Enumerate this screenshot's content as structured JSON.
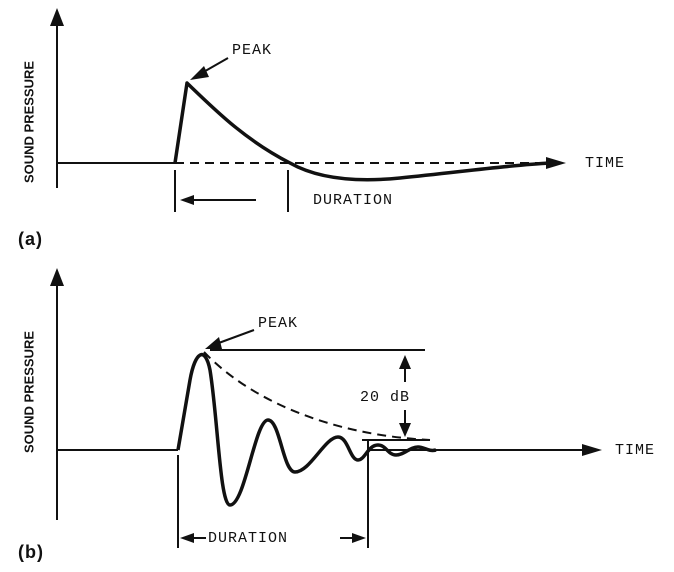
{
  "panels": [
    {
      "label": "(a)",
      "y_axis": "SOUND PRESSURE",
      "peak": "PEAK",
      "x_axis": "TIME",
      "duration": "DURATION"
    },
    {
      "label": "(b)",
      "y_axis": "SOUND PRESSURE",
      "peak": "PEAK",
      "x_axis": "TIME",
      "duration": "DURATION",
      "level": "20 dB"
    }
  ]
}
